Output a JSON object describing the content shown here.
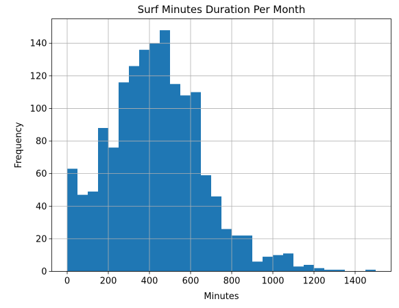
{
  "chart_data": {
    "type": "bar",
    "subtype": "histogram",
    "title": "Surf Minutes Duration Per Month",
    "xlabel": "Minutes",
    "ylabel": "Frequency",
    "xlim": [
      -75,
      1575
    ],
    "ylim": [
      0,
      155
    ],
    "xticks": [
      0,
      200,
      400,
      600,
      800,
      1000,
      1200,
      1400
    ],
    "yticks": [
      0,
      20,
      40,
      60,
      80,
      100,
      120,
      140
    ],
    "grid": true,
    "bar_color": "#1f77b4",
    "bins": [
      {
        "start": 0,
        "end": 50,
        "value": 63
      },
      {
        "start": 50,
        "end": 100,
        "value": 47
      },
      {
        "start": 100,
        "end": 150,
        "value": 49
      },
      {
        "start": 150,
        "end": 200,
        "value": 88
      },
      {
        "start": 200,
        "end": 250,
        "value": 76
      },
      {
        "start": 250,
        "end": 300,
        "value": 116
      },
      {
        "start": 300,
        "end": 350,
        "value": 126
      },
      {
        "start": 350,
        "end": 400,
        "value": 136
      },
      {
        "start": 400,
        "end": 450,
        "value": 140
      },
      {
        "start": 450,
        "end": 500,
        "value": 148
      },
      {
        "start": 500,
        "end": 550,
        "value": 115
      },
      {
        "start": 550,
        "end": 600,
        "value": 108
      },
      {
        "start": 600,
        "end": 650,
        "value": 110
      },
      {
        "start": 650,
        "end": 700,
        "value": 59
      },
      {
        "start": 700,
        "end": 750,
        "value": 46
      },
      {
        "start": 750,
        "end": 800,
        "value": 26
      },
      {
        "start": 800,
        "end": 850,
        "value": 22
      },
      {
        "start": 850,
        "end": 900,
        "value": 22
      },
      {
        "start": 900,
        "end": 950,
        "value": 6
      },
      {
        "start": 950,
        "end": 1000,
        "value": 9
      },
      {
        "start": 1000,
        "end": 1050,
        "value": 10
      },
      {
        "start": 1050,
        "end": 1100,
        "value": 11
      },
      {
        "start": 1100,
        "end": 1150,
        "value": 3
      },
      {
        "start": 1150,
        "end": 1200,
        "value": 4
      },
      {
        "start": 1200,
        "end": 1250,
        "value": 2
      },
      {
        "start": 1250,
        "end": 1300,
        "value": 1
      },
      {
        "start": 1300,
        "end": 1350,
        "value": 1
      },
      {
        "start": 1350,
        "end": 1400,
        "value": 0
      },
      {
        "start": 1400,
        "end": 1450,
        "value": 0
      },
      {
        "start": 1450,
        "end": 1500,
        "value": 1
      }
    ]
  }
}
